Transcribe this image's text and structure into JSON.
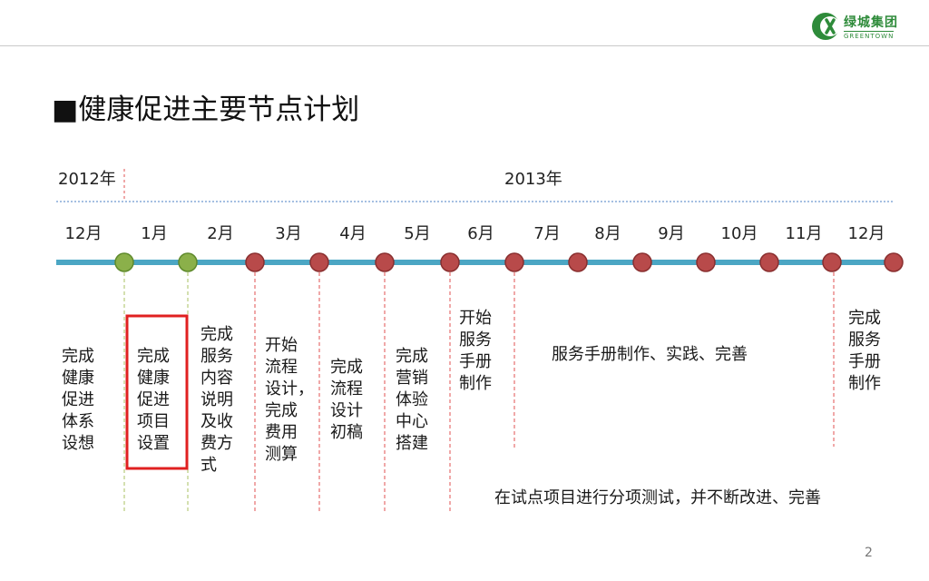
{
  "header": {
    "logo_cn": "绿城集团",
    "logo_en": "GREENTOWN",
    "logo_icon": "greentown-logo-icon",
    "brand_color": "#2e8b3a"
  },
  "slide": {
    "title_marker": "■",
    "title": "健康促进主要节点计划",
    "page_number": "2"
  },
  "timeline": {
    "year_2012": "2012年",
    "year_2013": "2013年",
    "months": [
      "12月",
      "1月",
      "2月",
      "3月",
      "4月",
      "5月",
      "6月",
      "7月",
      "8月",
      "9月",
      "10月",
      "11月",
      "12月"
    ],
    "line_color": "#4ba6c4",
    "done_color": "#8bb04a",
    "pending_color": "#b84a4a"
  },
  "milestones": {
    "m1": "完成\n健康\n促进\n体系\n设想",
    "m2": "完成\n健康\n促进\n项目\n设置",
    "m3": "完成\n服务\n内容\n说明\n及收\n费方\n式",
    "m4": "开始\n流程\n设计，\n完成\n费用\n测算",
    "m5": "完成\n流程\n设计\n初稿",
    "m6": "完成\n营销\n体验\n中心\n搭建",
    "m7": "开始\n服务\n手册\n制作",
    "m8": "服务手册制作、实践、完善",
    "m9": "完成\n服务\n手册\n制作",
    "m10": "在试点项目进行分项测试，并不断改进、完善"
  }
}
